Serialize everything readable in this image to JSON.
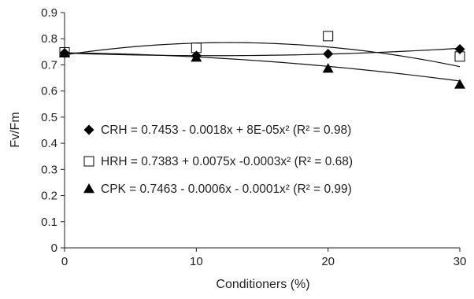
{
  "chart_data": {
    "type": "scatter",
    "xlabel": "Conditioners (%)",
    "ylabel": "Fv/Fm",
    "xlim": [
      0,
      30
    ],
    "ylim": [
      0,
      0.9
    ],
    "x_ticks": [
      "0",
      "10",
      "20",
      "30"
    ],
    "y_ticks": [
      "0",
      "0.1",
      "0.2",
      "0.3",
      "0.4",
      "0.5",
      "0.6",
      "0.7",
      "0.8",
      "0.9"
    ],
    "grid": false,
    "legend_position": "left-center",
    "series": [
      {
        "name": "CRH",
        "marker": "diamond",
        "filled": true,
        "x": [
          0,
          10,
          20,
          30
        ],
        "y": [
          0.745,
          0.735,
          0.742,
          0.76
        ],
        "fit": {
          "a": 0.7453,
          "b": -0.0018,
          "c": 8e-05
        },
        "legend_label": "CRH = 0.7453 - 0.0018x + 8E-05x² (R² = 0.98)"
      },
      {
        "name": "HRH",
        "marker": "square",
        "filled": false,
        "x": [
          0,
          10,
          20,
          30
        ],
        "y": [
          0.748,
          0.765,
          0.81,
          0.732
        ],
        "fit": {
          "a": 0.7383,
          "b": 0.0075,
          "c": -0.0003
        },
        "legend_label": "HRH = 0.7383 + 0.0075x -0.0003x² (R² = 0.68)"
      },
      {
        "name": "CPK",
        "marker": "triangle",
        "filled": true,
        "x": [
          0,
          10,
          20,
          30
        ],
        "y": [
          0.745,
          0.728,
          0.686,
          0.625
        ],
        "fit": {
          "a": 0.7463,
          "b": -0.0006,
          "c": -0.0001
        },
        "legend_label": "CPK = 0.7463 - 0.0006x - 0.0001x² (R² = 0.99)"
      }
    ]
  }
}
